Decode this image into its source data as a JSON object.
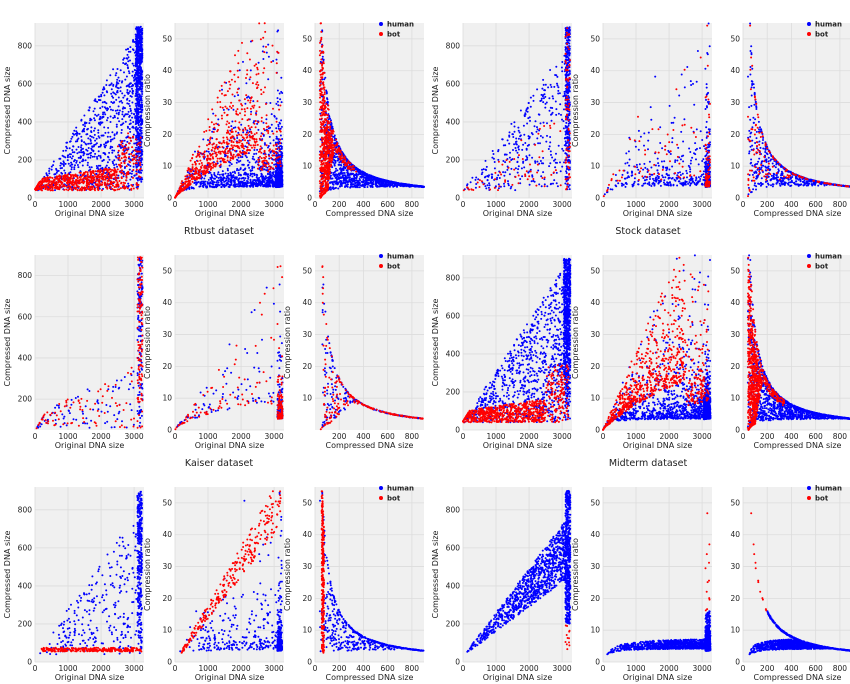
{
  "figure": {
    "colors": {
      "human": "#0000ff",
      "bot": "#ff0000",
      "panel_bg": "#f0f0f0",
      "grid": "#dcdcdc",
      "figure_bg": "#ffffff"
    },
    "legend": {
      "human": "human",
      "bot": "bot"
    },
    "dataset_captions": [
      "Rtbust dataset",
      "Stock dataset",
      "Kaiser dataset",
      "Midterm dataset"
    ]
  },
  "chart_data": [
    {
      "type": "scatter",
      "panel": "top-left",
      "subplots": [
        {
          "kind": "orig_vs_compressed",
          "xlabel": "Original DNA size",
          "ylabel": "Compressed DNA size",
          "xlim": [
            0,
            3300
          ],
          "ylim": [
            0,
            920
          ],
          "xticks": [
            "0",
            "1000",
            "2000",
            "3000"
          ],
          "yticks": [
            "0",
            "200",
            "400",
            "600",
            "800"
          ]
        },
        {
          "kind": "orig_vs_ratio",
          "xlabel": "Original DNA size",
          "ylabel": "Compression ratio",
          "xlim": [
            0,
            3300
          ],
          "ylim": [
            0,
            55
          ],
          "xticks": [
            "0",
            "1000",
            "2000",
            "3000"
          ],
          "yticks": [
            "0",
            "10",
            "20",
            "30",
            "40",
            "50"
          ]
        },
        {
          "kind": "compressed_vs_ratio",
          "xlabel": "Compressed DNA size",
          "ylabel": "",
          "xlim": [
            0,
            900
          ],
          "ylim": [
            0,
            55
          ],
          "xticks": [
            "0",
            "200",
            "400",
            "600",
            "800"
          ],
          "yticks": [
            "0",
            "10",
            "20",
            "30",
            "40",
            "50"
          ]
        }
      ],
      "series": [
        {
          "name": "human",
          "n_points": 1600,
          "pattern": "dense-triangle"
        },
        {
          "name": "bot",
          "n_points": 700,
          "pattern": "low-band"
        }
      ]
    },
    {
      "type": "scatter",
      "panel": "top-right",
      "subplots": [
        {
          "kind": "orig_vs_compressed",
          "xlabel": "Original DNA size",
          "ylabel": "Compressed DNA size",
          "xlim": [
            0,
            3300
          ],
          "ylim": [
            0,
            920
          ],
          "xticks": [
            "0",
            "1000",
            "2000",
            "3000"
          ],
          "yticks": [
            "0",
            "200",
            "400",
            "600",
            "800"
          ]
        },
        {
          "kind": "orig_vs_ratio",
          "xlabel": "Original DNA size",
          "ylabel": "Compression ratio",
          "xlim": [
            0,
            3300
          ],
          "ylim": [
            0,
            55
          ],
          "xticks": [
            "0",
            "1000",
            "2000",
            "3000"
          ],
          "yticks": [
            "0",
            "10",
            "20",
            "30",
            "40",
            "50"
          ]
        },
        {
          "kind": "compressed_vs_ratio",
          "xlabel": "Compressed DNA size",
          "ylabel": "",
          "xlim": [
            0,
            900
          ],
          "ylim": [
            0,
            55
          ],
          "xticks": [
            "0",
            "200",
            "400",
            "600",
            "800"
          ],
          "yticks": [
            "0",
            "10",
            "20",
            "30",
            "40",
            "50"
          ]
        }
      ],
      "series": [
        {
          "name": "human",
          "n_points": 700,
          "pattern": "sparse-triangle"
        },
        {
          "name": "bot",
          "n_points": 140,
          "pattern": "scattered"
        }
      ]
    },
    {
      "type": "scatter",
      "panel": "middle-left",
      "subplots": [
        {
          "kind": "orig_vs_compressed",
          "xlabel": "Original DNA size",
          "ylabel": "Compressed DNA size",
          "xlim": [
            0,
            3300
          ],
          "ylim": [
            50,
            900
          ],
          "xticks": [
            "0",
            "1000",
            "2000",
            "3000"
          ],
          "yticks": [
            "200",
            "400",
            "600",
            "800"
          ]
        },
        {
          "kind": "orig_vs_ratio",
          "xlabel": "Original DNA size",
          "ylabel": "Compression ratio",
          "xlim": [
            0,
            3300
          ],
          "ylim": [
            0,
            55
          ],
          "xticks": [
            "0",
            "1000",
            "2000",
            "3000"
          ],
          "yticks": [
            "0",
            "10",
            "20",
            "30",
            "40",
            "50"
          ]
        },
        {
          "kind": "compressed_vs_ratio",
          "xlabel": "Compressed DNA size",
          "ylabel": "Compression ratio",
          "xlim": [
            0,
            900
          ],
          "ylim": [
            0,
            55
          ],
          "xticks": [
            "200",
            "400",
            "600",
            "800"
          ],
          "yticks": [
            "10",
            "20",
            "30",
            "40",
            "50"
          ]
        }
      ],
      "series": [
        {
          "name": "human",
          "n_points": 230,
          "pattern": "sparse"
        },
        {
          "name": "bot",
          "n_points": 200,
          "pattern": "sparse"
        }
      ]
    },
    {
      "type": "scatter",
      "panel": "middle-right",
      "subplots": [
        {
          "kind": "orig_vs_compressed",
          "xlabel": "Original DNA size",
          "ylabel": "Compressed DNA size",
          "xlim": [
            0,
            3300
          ],
          "ylim": [
            0,
            920
          ],
          "xticks": [
            "0",
            "1000",
            "2000",
            "3000"
          ],
          "yticks": [
            "0",
            "200",
            "400",
            "600",
            "800"
          ]
        },
        {
          "kind": "orig_vs_ratio",
          "xlabel": "Original DNA size",
          "ylabel": "Compression ratio",
          "xlim": [
            0,
            3300
          ],
          "ylim": [
            0,
            55
          ],
          "xticks": [
            "0",
            "1000",
            "2000",
            "3000"
          ],
          "yticks": [
            "0",
            "10",
            "20",
            "30",
            "40",
            "50"
          ]
        },
        {
          "kind": "compressed_vs_ratio",
          "xlabel": "Compressed DNA size",
          "ylabel": "",
          "xlim": [
            0,
            900
          ],
          "ylim": [
            0,
            55
          ],
          "xticks": [
            "0",
            "200",
            "400",
            "600",
            "800"
          ],
          "yticks": [
            "0",
            "10",
            "20",
            "30",
            "40",
            "50"
          ]
        }
      ],
      "series": [
        {
          "name": "human",
          "n_points": 1600,
          "pattern": "dense-triangle"
        },
        {
          "name": "bot",
          "n_points": 800,
          "pattern": "low-band"
        }
      ]
    },
    {
      "type": "scatter",
      "panel": "bottom-left",
      "subplots": [
        {
          "kind": "orig_vs_compressed",
          "xlabel": "Original DNA size",
          "ylabel": "Compressed DNA size",
          "xlim": [
            0,
            3300
          ],
          "ylim": [
            0,
            920
          ],
          "xticks": [
            "0",
            "1000",
            "2000",
            "3000"
          ],
          "yticks": [
            "0",
            "200",
            "400",
            "600",
            "800"
          ]
        },
        {
          "kind": "orig_vs_ratio",
          "xlabel": "Original DNA size",
          "ylabel": "Compression ratio",
          "xlim": [
            0,
            3300
          ],
          "ylim": [
            0,
            55
          ],
          "xticks": [
            "0",
            "1000",
            "2000",
            "3000"
          ],
          "yticks": [
            "0",
            "10",
            "20",
            "30",
            "40",
            "50"
          ]
        },
        {
          "kind": "compressed_vs_ratio",
          "xlabel": "Compressed DNA size",
          "ylabel": "Compression ratio",
          "xlim": [
            0,
            900
          ],
          "ylim": [
            0,
            55
          ],
          "xticks": [
            "0",
            "200",
            "400",
            "600",
            "800"
          ],
          "yticks": [
            "0",
            "10",
            "20",
            "30",
            "40",
            "50"
          ]
        }
      ],
      "series": [
        {
          "name": "human",
          "n_points": 600,
          "pattern": "sparse-triangle"
        },
        {
          "name": "bot",
          "n_points": 280,
          "pattern": "line"
        }
      ]
    },
    {
      "type": "scatter",
      "panel": "bottom-right",
      "subplots": [
        {
          "kind": "orig_vs_compressed",
          "xlabel": "Original DNA size",
          "ylabel": "Compressed DNA size",
          "xlim": [
            0,
            3300
          ],
          "ylim": [
            0,
            920
          ],
          "xticks": [
            "0",
            "1000",
            "2000",
            "3000"
          ],
          "yticks": [
            "0",
            "200",
            "400",
            "600",
            "800"
          ]
        },
        {
          "kind": "orig_vs_ratio",
          "xlabel": "Original DNA size",
          "ylabel": "Compression ratio",
          "xlim": [
            0,
            3300
          ],
          "ylim": [
            0,
            55
          ],
          "xticks": [
            "0",
            "1000",
            "2000",
            "3000"
          ],
          "yticks": [
            "0",
            "10",
            "20",
            "30",
            "40",
            "50"
          ]
        },
        {
          "kind": "compressed_vs_ratio",
          "xlabel": "Compressed DNA size",
          "ylabel": "",
          "xlim": [
            0,
            900
          ],
          "ylim": [
            0,
            55
          ],
          "xticks": [
            "0",
            "200",
            "400",
            "600",
            "800"
          ],
          "yticks": [
            "0",
            "10",
            "20",
            "30",
            "40",
            "50"
          ]
        }
      ],
      "series": [
        {
          "name": "human",
          "n_points": 1500,
          "pattern": "dense-band"
        },
        {
          "name": "bot",
          "n_points": 12,
          "pattern": "few"
        }
      ]
    }
  ]
}
